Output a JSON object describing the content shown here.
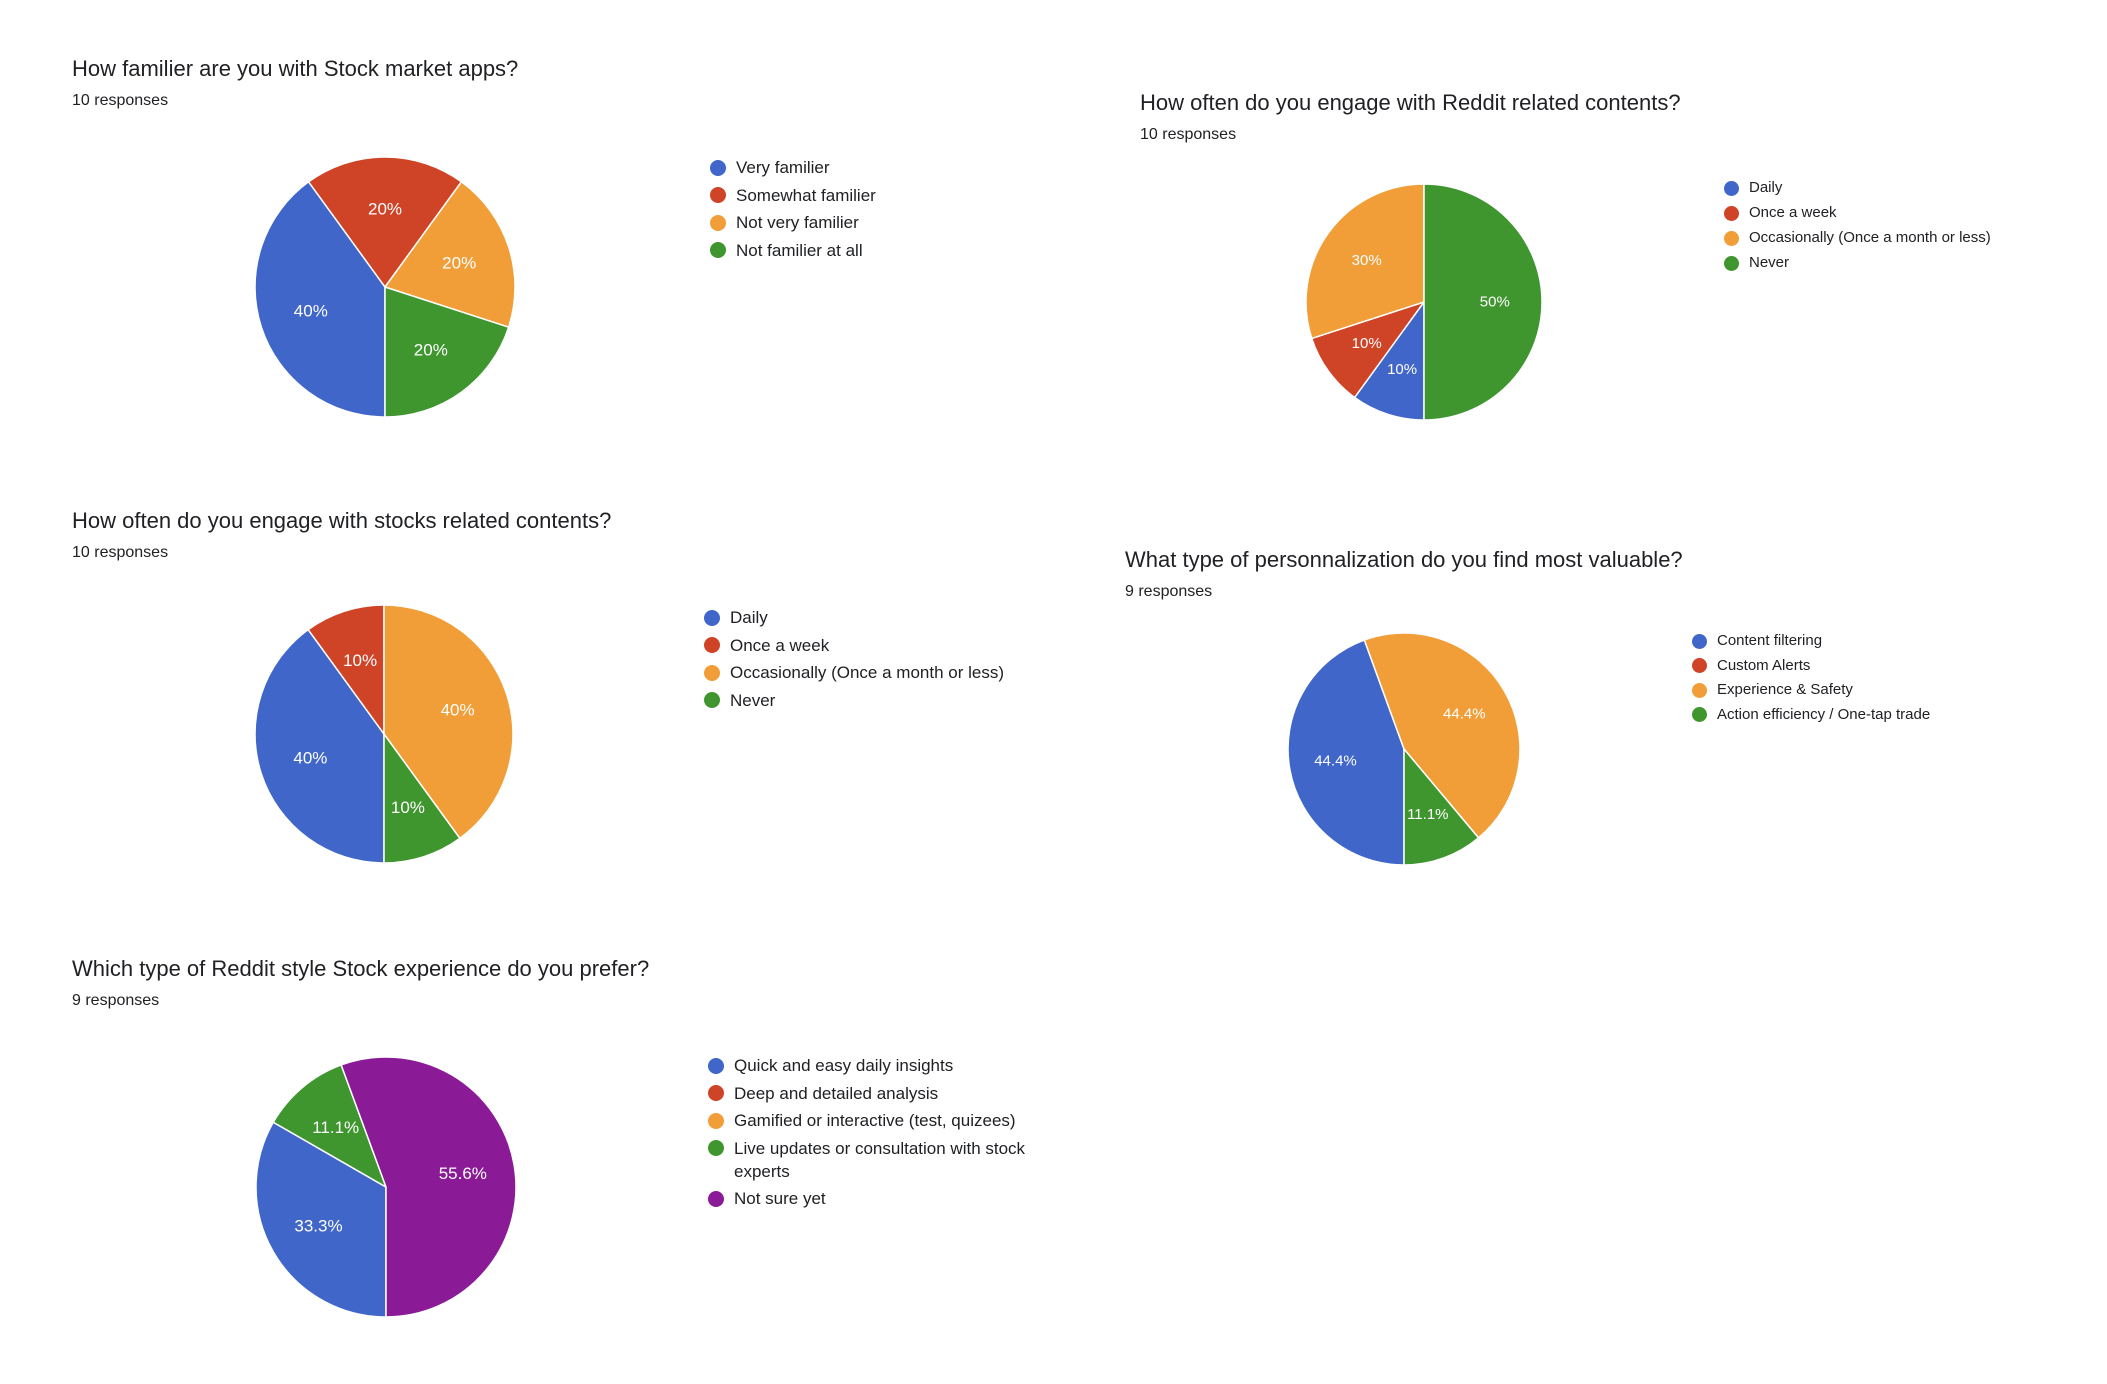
{
  "chart_data": [
    {
      "type": "pie",
      "title": "How familier are you with Stock market apps?",
      "subtitle": "10 responses",
      "categories": [
        "Very familier",
        "Somewhat familier",
        "Not very familier",
        "Not familier at all"
      ],
      "values": [
        40,
        20,
        20,
        20
      ],
      "value_labels": [
        "40%",
        "20%",
        "20%",
        "20%"
      ],
      "colors": [
        "#3f66c8",
        "#cf4327",
        "#f19e38",
        "#3f962f"
      ],
      "legend_position": "right"
    },
    {
      "type": "pie",
      "title": "How often do you engage with Reddit related contents?",
      "subtitle": "10 responses",
      "categories": [
        "Daily",
        "Once a week",
        "Occasionally (Once a month or less)",
        "Never"
      ],
      "values": [
        10,
        10,
        30,
        50
      ],
      "value_labels": [
        "10%",
        "10%",
        "30%",
        "50%"
      ],
      "colors": [
        "#3f66c8",
        "#cf4327",
        "#f19e38",
        "#3f962f"
      ],
      "legend_position": "right"
    },
    {
      "type": "pie",
      "title": "How often do you engage with stocks related contents?",
      "subtitle": "10 responses",
      "categories": [
        "Daily",
        "Once a week",
        "Occasionally (Once a month or less)",
        "Never"
      ],
      "values": [
        40,
        10,
        40,
        10
      ],
      "value_labels": [
        "40%",
        "10%",
        "40%",
        "10%"
      ],
      "colors": [
        "#3f66c8",
        "#cf4327",
        "#f19e38",
        "#3f962f"
      ],
      "legend_position": "right"
    },
    {
      "type": "pie",
      "title": "What type of personnalization do you find most valuable?",
      "subtitle": "9 responses",
      "categories": [
        "Content filtering",
        "Custom Alerts",
        "Experience & Safety",
        "Action efficiency / One-tap trade"
      ],
      "values": [
        44.4,
        0,
        44.4,
        11.1
      ],
      "value_labels": [
        "44.4%",
        "",
        "44.4%",
        "11.1%"
      ],
      "colors": [
        "#3f66c8",
        "#cf4327",
        "#f19e38",
        "#3f962f"
      ],
      "legend_position": "right"
    },
    {
      "type": "pie",
      "title": "Which type of Reddit style Stock experience do you prefer?",
      "subtitle": "9 responses",
      "categories": [
        "Quick and easy daily insights",
        "Deep and detailed analysis",
        "Gamified or interactive (test, quizees)",
        "Live updates or consultation with stock experts",
        "Not sure yet"
      ],
      "values": [
        33.3,
        0,
        0,
        11.1,
        55.6
      ],
      "value_labels": [
        "33.3%",
        "",
        "",
        "11.1%",
        "55.6%"
      ],
      "colors": [
        "#3f66c8",
        "#cf4327",
        "#f19e38",
        "#3f962f",
        "#8a1a96"
      ],
      "legend_position": "right"
    }
  ]
}
